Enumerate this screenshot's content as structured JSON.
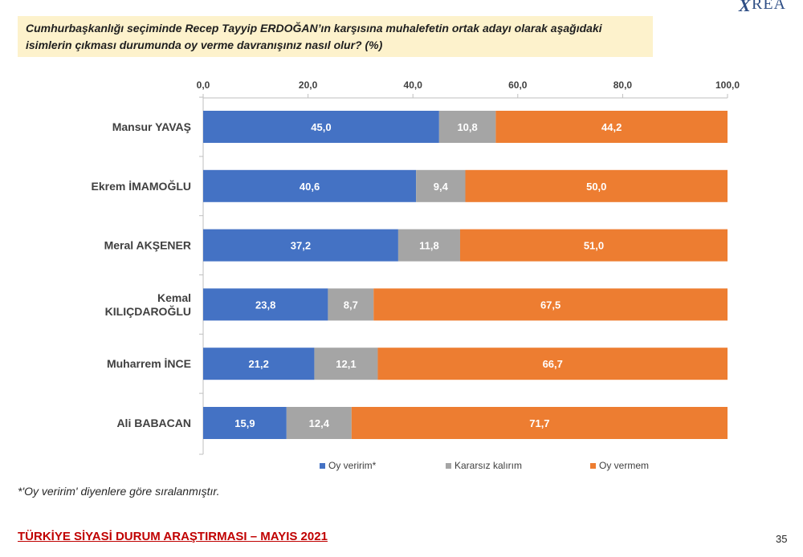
{
  "logo": {
    "mark": "Χ",
    "text": "REA"
  },
  "question": "Cumhurbaşkanlığı seçiminde Recep Tayyip ERDOĞAN’ın karşısına muhalefetin ortak adayı olarak aşağıdaki isimlerin çıkması durumunda oy verme davranışınız nasıl olur? (%)",
  "chart_data": {
    "type": "bar",
    "orientation": "horizontal",
    "stacked": true,
    "categories": [
      "Mansur YAVAŞ",
      "Ekrem İMAMOĞLU",
      "Meral AKŞENER",
      "Kemal KILIÇDAROĞLU",
      "Muharrem İNCE",
      "Ali BABACAN"
    ],
    "category_lines": [
      [
        "Mansur YAVAŞ"
      ],
      [
        "Ekrem İMAMOĞLU"
      ],
      [
        "Meral AKŞENER"
      ],
      [
        "Kemal",
        "KILIÇDAROĞLU"
      ],
      [
        "Muharrem İNCE"
      ],
      [
        "Ali BABACAN"
      ]
    ],
    "series": [
      {
        "name": "Oy veririm*",
        "color": "#4472c4",
        "values": [
          45.0,
          40.6,
          37.2,
          23.8,
          21.2,
          15.9
        ]
      },
      {
        "name": "Kararsız kalırım",
        "color": "#a5a5a5",
        "values": [
          10.8,
          9.4,
          11.8,
          8.7,
          12.1,
          12.4
        ]
      },
      {
        "name": "Oy vermem",
        "color": "#ed7d31",
        "values": [
          44.2,
          50.0,
          51.0,
          67.5,
          66.7,
          71.7
        ]
      }
    ],
    "xlim": [
      0,
      100
    ],
    "xticks": [
      "0,0",
      "20,0",
      "40,0",
      "60,0",
      "80,0",
      "100,0"
    ],
    "xtick_values": [
      0,
      20,
      40,
      60,
      80,
      100
    ],
    "axis_position": "top",
    "grid": false,
    "legend_position": "bottom",
    "decimal_separator": ","
  },
  "note": "*'Oy veririm' diyenlere göre sıralanmıştır.",
  "footer": {
    "title": "TÜRKİYE SİYASİ DURUM ARAŞTIRMASI – MAYIS 2021",
    "page": "35"
  }
}
